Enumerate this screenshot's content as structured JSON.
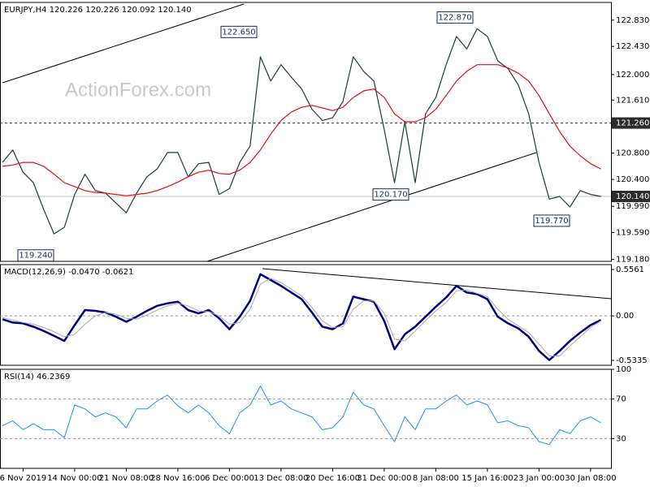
{
  "chart_data": [
    {
      "type": "line",
      "title": "EURJPY,H4  120.226 120.226 120.092 120.140",
      "watermark": "ActionForex.com",
      "ylim": [
        119.15,
        123.1
      ],
      "yticks": [
        {
          "value": 122.83,
          "label": "122.830"
        },
        {
          "value": 122.43,
          "label": "122.430"
        },
        {
          "value": 122.0,
          "label": "122.000"
        },
        {
          "value": 121.61,
          "label": "121.610"
        },
        {
          "value": 120.8,
          "label": "120.800"
        },
        {
          "value": 120.4,
          "label": "120.400"
        },
        {
          "value": 119.99,
          "label": "119.990"
        },
        {
          "value": 119.59,
          "label": "119.590"
        },
        {
          "value": 119.18,
          "label": "119.180"
        }
      ],
      "series": [
        {
          "color": "#1f3b3b",
          "values": [
            120.66,
            120.85,
            120.51,
            120.35,
            119.94,
            119.57,
            119.67,
            120.17,
            120.48,
            120.23,
            120.19,
            120.04,
            119.89,
            120.19,
            120.44,
            120.56,
            120.81,
            120.81,
            120.44,
            120.64,
            120.66,
            120.17,
            120.26,
            120.66,
            120.91,
            122.27,
            121.9,
            122.15,
            121.96,
            121.78,
            121.47,
            121.3,
            121.34,
            121.59,
            122.27,
            122.05,
            121.9,
            121.16,
            120.35,
            121.28,
            120.35,
            121.4,
            121.65,
            122.15,
            122.58,
            122.39,
            122.7,
            122.58,
            122.21,
            122.09,
            121.84,
            121.4,
            120.66,
            120.1,
            120.14,
            119.98,
            120.23,
            120.17,
            120.14
          ]
        },
        {
          "color": "#e01010",
          "values": [
            120.6,
            120.62,
            120.66,
            120.66,
            120.6,
            120.48,
            120.35,
            120.29,
            120.23,
            120.2,
            120.19,
            120.17,
            120.15,
            120.17,
            120.19,
            120.23,
            120.29,
            120.36,
            120.44,
            120.51,
            120.54,
            120.49,
            120.48,
            120.54,
            120.66,
            120.85,
            121.09,
            121.3,
            121.43,
            121.5,
            121.53,
            121.49,
            121.45,
            121.5,
            121.65,
            121.75,
            121.78,
            121.65,
            121.4,
            121.28,
            121.28,
            121.34,
            121.47,
            121.68,
            121.9,
            122.05,
            122.15,
            122.15,
            122.15,
            122.1,
            122.02,
            121.9,
            121.68,
            121.4,
            121.13,
            120.91,
            120.76,
            120.64,
            120.56
          ]
        }
      ],
      "hlines": [
        {
          "value": 121.26,
          "label": "121.260"
        }
      ],
      "last_price": {
        "value": 120.14,
        "label": "120.140"
      },
      "annotations": [
        {
          "value": 122.65,
          "label": "122.650"
        },
        {
          "value": 122.87,
          "label": "122.870"
        },
        {
          "value": 120.17,
          "label": "120.170"
        },
        {
          "value": 119.24,
          "label": "119.240"
        },
        {
          "value": 119.77,
          "label": "119.770"
        }
      ]
    },
    {
      "type": "line",
      "title": "MACD(12,26,9) -0.0470 -0.0621",
      "ylim": [
        -0.592,
        0.6145
      ],
      "yticks": [
        0.5561,
        {
          "value": 0,
          "label": "0.00"
        },
        -0.5335
      ],
      "levels": [
        0
      ],
      "series": [
        {
          "color": "#000080",
          "width": 2.5,
          "values": [
            -0.04,
            -0.08,
            -0.09,
            -0.13,
            -0.18,
            -0.24,
            -0.3,
            -0.11,
            0.07,
            0.06,
            0.04,
            -0.01,
            -0.07,
            -0.01,
            0.06,
            0.12,
            0.15,
            0.17,
            0.07,
            0.03,
            0.07,
            -0.03,
            -0.16,
            -0.01,
            0.18,
            0.5,
            0.43,
            0.36,
            0.28,
            0.2,
            0.04,
            -0.13,
            -0.16,
            -0.09,
            0.23,
            0.2,
            0.17,
            -0.06,
            -0.4,
            -0.22,
            -0.13,
            -0.01,
            0.11,
            0.22,
            0.36,
            0.28,
            0.26,
            0.2,
            -0.01,
            -0.09,
            -0.15,
            -0.25,
            -0.42,
            -0.53,
            -0.42,
            -0.3,
            -0.2,
            -0.11,
            -0.05
          ]
        },
        {
          "color": "#a8a8a8",
          "width": 1,
          "values": [
            -0.02,
            -0.05,
            -0.08,
            -0.1,
            -0.14,
            -0.19,
            -0.25,
            -0.22,
            -0.1,
            0.0,
            0.04,
            0.02,
            -0.03,
            -0.04,
            0.01,
            0.07,
            0.12,
            0.15,
            0.12,
            0.06,
            0.05,
            0.0,
            -0.1,
            -0.08,
            0.08,
            0.38,
            0.45,
            0.4,
            0.32,
            0.24,
            0.1,
            -0.06,
            -0.14,
            -0.13,
            0.08,
            0.18,
            0.18,
            0.03,
            -0.28,
            -0.3,
            -0.18,
            -0.06,
            0.06,
            0.16,
            0.3,
            0.31,
            0.27,
            0.23,
            0.08,
            -0.04,
            -0.12,
            -0.2,
            -0.34,
            -0.48,
            -0.48,
            -0.36,
            -0.25,
            -0.14,
            -0.06
          ]
        }
      ]
    },
    {
      "type": "line",
      "title": "RSI(14) 46.2369",
      "ylim": [
        0,
        100
      ],
      "yticks": [
        100,
        70,
        30
      ],
      "levels": [
        70,
        30
      ],
      "categories": [
        null,
        null,
        "6 Nov 2019",
        null,
        null,
        null,
        null,
        "14 Nov 00:00",
        null,
        null,
        null,
        null,
        "21 Nov 08:00",
        null,
        null,
        null,
        null,
        "28 Nov 16:00",
        null,
        null,
        null,
        null,
        "6 Dec 00:00",
        null,
        null,
        null,
        null,
        "13 Dec 08:00",
        null,
        null,
        null,
        null,
        "20 Dec 16:00",
        null,
        null,
        null,
        null,
        "31 Dec 00:00",
        null,
        null,
        null,
        null,
        "8 Jan 08:00",
        null,
        null,
        null,
        null,
        "15 Jan 16:00",
        null,
        null,
        null,
        null,
        "23 Jan 00:00",
        null,
        null,
        null,
        null,
        "30 Jan 08:00",
        null
      ],
      "series": [
        {
          "color": "#1e90ff",
          "width": 1,
          "values": [
            43,
            48,
            39,
            45,
            39,
            39,
            31,
            64,
            60,
            52,
            56,
            52,
            41,
            60,
            60,
            68,
            74,
            63,
            56,
            64,
            56,
            43,
            35,
            56,
            64,
            83,
            64,
            68,
            60,
            56,
            52,
            39,
            41,
            52,
            77,
            64,
            60,
            43,
            27,
            52,
            39,
            60,
            60,
            68,
            74,
            64,
            68,
            64,
            46,
            48,
            43,
            41,
            27,
            24,
            39,
            35,
            48,
            52,
            46
          ]
        }
      ]
    }
  ]
}
